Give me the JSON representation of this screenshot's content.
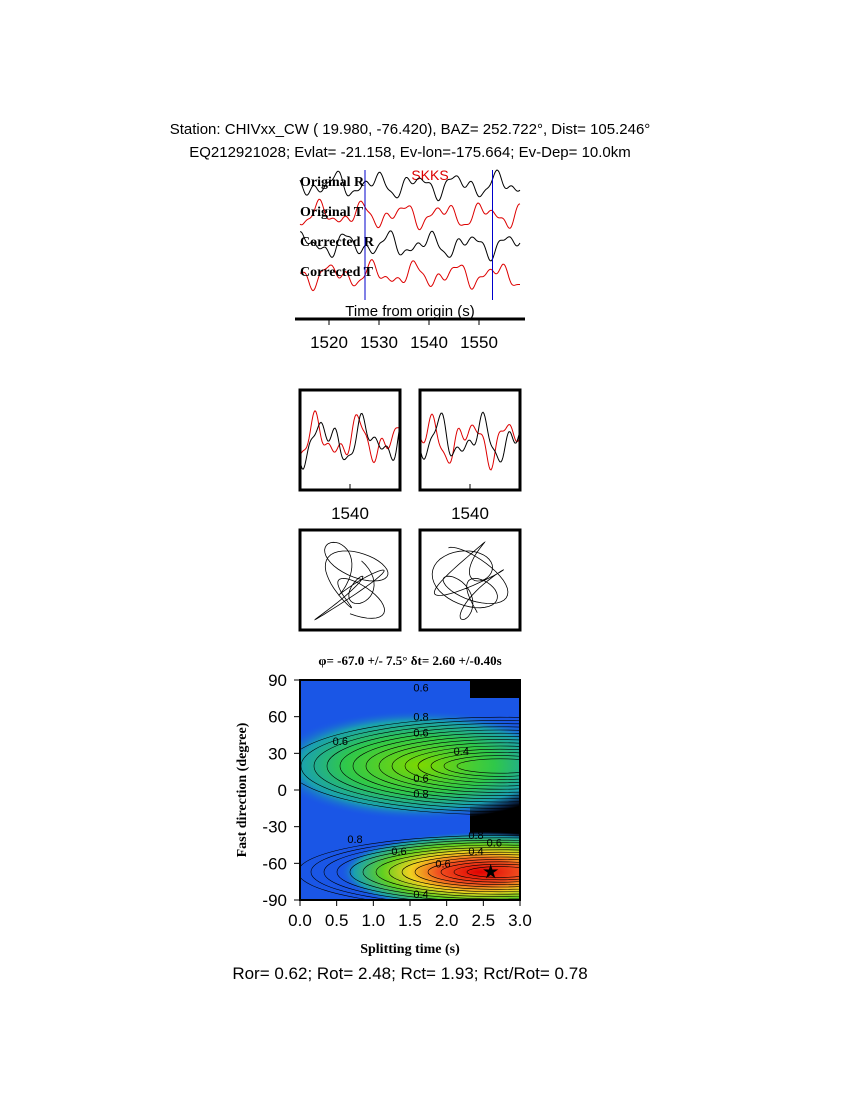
{
  "header": {
    "line1": "Station: CHIVxx_CW (  19.980,  -76.420), BAZ=  252.722°, Dist=  105.246°",
    "line2": "EQ212921028; Evlat= -21.158, Ev-lon=-175.664; Ev-Dep= 10.0km"
  },
  "traces": {
    "phase": "SKKS",
    "labels": [
      "Original R",
      "Original T",
      "Corrected R",
      "Corrected T"
    ],
    "xlabel": "Time from origin (s)",
    "xlim": [
      1515,
      1559
    ],
    "xticks": [
      1520,
      1530,
      1540,
      1550
    ],
    "picks": [
      1528,
      1553.5
    ]
  },
  "windows": {
    "xlim": [
      1530,
      1550
    ],
    "xticks": [
      1540
    ]
  },
  "grid_search": {
    "title": "φ= -67.0 +/- 7.5° δt= 2.60 +/-0.40s",
    "xlabel": "Splitting time (s)",
    "ylabel": "Fast direction (degree)",
    "xlim": [
      0,
      3
    ],
    "ylim": [
      -90,
      90
    ],
    "xticks": [
      {
        "value": 0,
        "label": "0.0"
      },
      {
        "value": 0.5,
        "label": "0.5"
      },
      {
        "value": 1,
        "label": "1.0"
      },
      {
        "value": 1.5,
        "label": "1.5"
      },
      {
        "value": 2,
        "label": "2.0"
      },
      {
        "value": 2.5,
        "label": "2.5"
      },
      {
        "value": 3,
        "label": "3.0"
      }
    ],
    "yticks": [
      -90,
      -60,
      -30,
      0,
      30,
      60,
      90
    ],
    "best": {
      "dt": 2.6,
      "phi": -67
    },
    "contour_labels": [
      "0.6",
      "0.8",
      "0.6",
      "0.4",
      "0.6",
      "0.6",
      "0.8",
      "0.8",
      "0.6",
      "0.8",
      "0.6",
      "0.4",
      "0.6",
      "0.4"
    ]
  },
  "footer": "Ror= 0.62; Rot= 2.48; Rct= 1.93; Rct/Rot= 0.78"
}
